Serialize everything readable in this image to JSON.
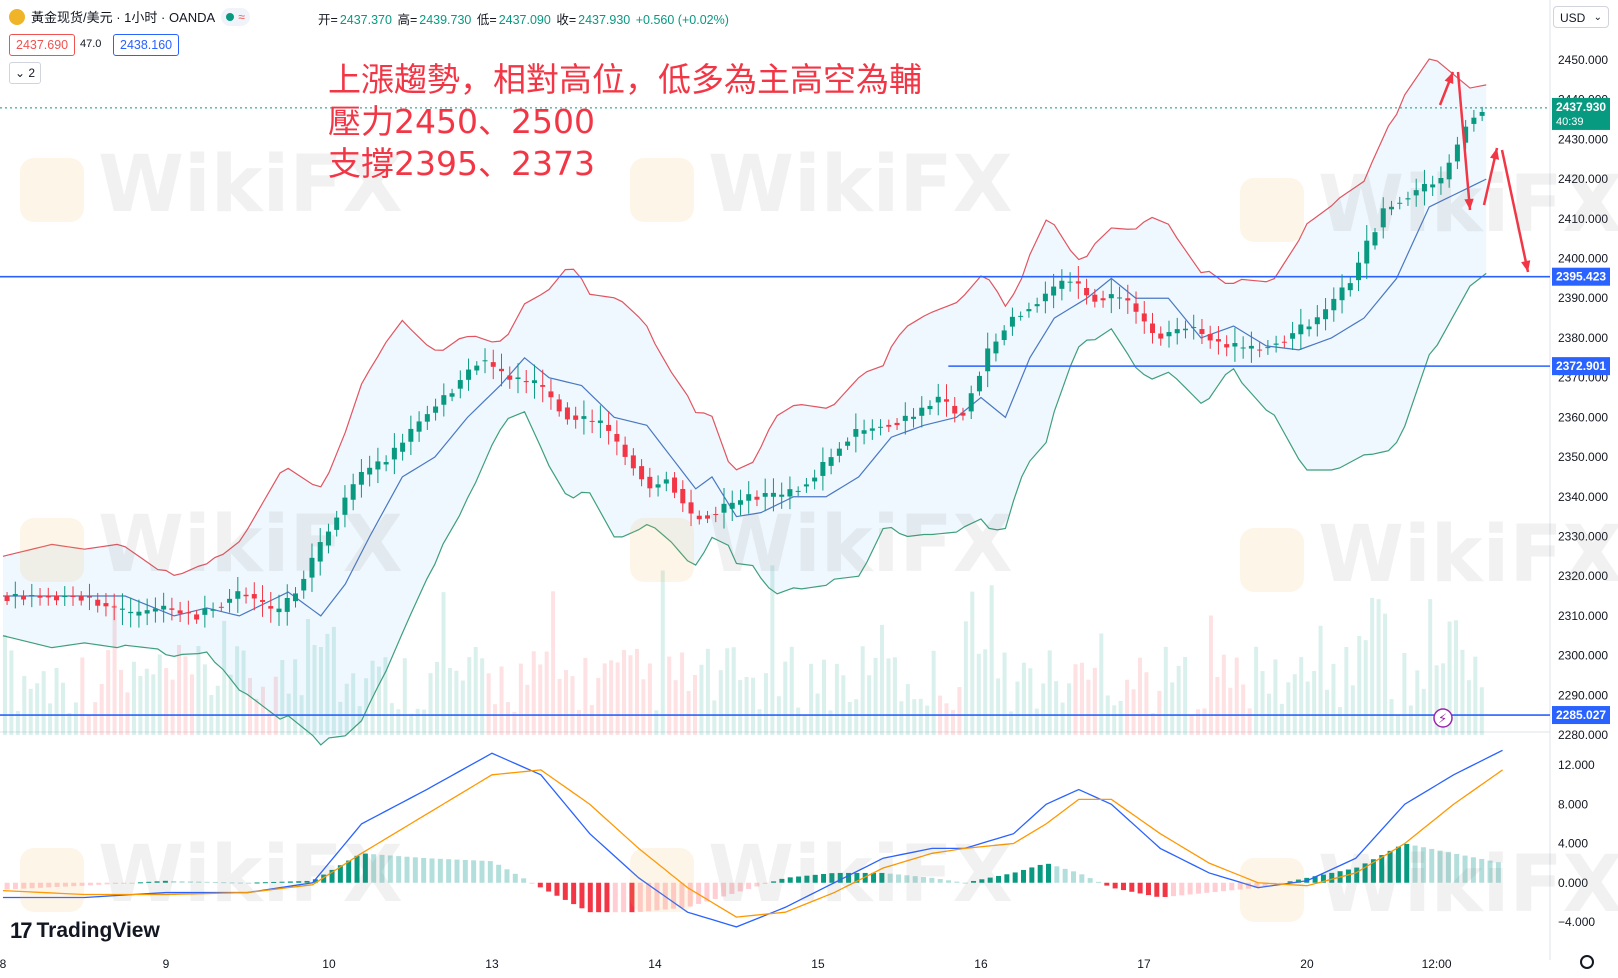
{
  "header": {
    "symbol_title": "黃金现货/美元 · 1小时 · OANDA",
    "ohlc": [
      {
        "label": "开=",
        "value": "2437.370"
      },
      {
        "label": "高=",
        "value": "2439.730"
      },
      {
        "label": "低=",
        "value": "2437.090"
      },
      {
        "label": "收=",
        "value": "2437.930"
      }
    ],
    "change": "+0.560 (+0.02%)",
    "sell_price": "2437.690",
    "spread": "47.0",
    "buy_price": "2438.160",
    "collapse_label": "2",
    "currency": "USD"
  },
  "annotation": {
    "line1": "上漲趨勢，相對高位，低多為主高空為輔",
    "line2": "壓力2450、2500",
    "line3": "支撐2395、2373"
  },
  "brand": {
    "logo": "17",
    "name": "TradingView"
  },
  "watermark": "WikiFX",
  "colors": {
    "up": "#089981",
    "down": "#f23645",
    "hline": "#2962ff",
    "band_upper": "#e05561",
    "band_lower": "#3f9f7a",
    "band_mid": "#4a78c2",
    "annotation": "#f23645",
    "macd": "#2962ff",
    "signal": "#ff9800"
  },
  "chart_data": {
    "type": "candlestick",
    "symbol": "XAU/USD",
    "price_axis": {
      "min": 2280,
      "max": 2450,
      "ticks": [
        2450,
        2440,
        2430,
        2420,
        2410,
        2400,
        2390,
        2380,
        2370,
        2360,
        2350,
        2340,
        2330,
        2320,
        2310,
        2300,
        2290,
        2280
      ]
    },
    "price_tick_labels": [
      "2450.000",
      "2440.000",
      "2430.000",
      "2420.000",
      "2410.000",
      "2400.000",
      "2390.000",
      "2380.000",
      "2370.000",
      "2360.000",
      "2350.000",
      "2340.000",
      "2330.000",
      "2320.000",
      "2310.000",
      "2300.000",
      "2290.000",
      "2280.000"
    ],
    "x_labels": [
      "8",
      "9",
      "10",
      "13",
      "14",
      "15",
      "16",
      "17",
      "20",
      "12:00"
    ],
    "current_price": {
      "value": 2437.93,
      "label": "2437.930",
      "countdown": "40:39"
    },
    "horizontal_lines": [
      {
        "value": 2395.423,
        "label": "2395.423",
        "from_day": 0
      },
      {
        "value": 2372.901,
        "label": "2372.901",
        "from_day": 5.8
      },
      {
        "value": 2285.027,
        "label": "2285.027",
        "from_day": 0
      }
    ],
    "price_path": [
      [
        0,
        2315
      ],
      [
        0.5,
        2315
      ],
      [
        0.8,
        2310
      ],
      [
        1.0,
        2312
      ],
      [
        1.2,
        2310
      ],
      [
        1.5,
        2316
      ],
      [
        1.7,
        2310
      ],
      [
        1.85,
        2318
      ],
      [
        2.0,
        2330
      ],
      [
        2.2,
        2345
      ],
      [
        2.4,
        2350
      ],
      [
        2.6,
        2360
      ],
      [
        2.8,
        2368
      ],
      [
        2.95,
        2375
      ],
      [
        3.1,
        2370
      ],
      [
        3.3,
        2368
      ],
      [
        3.5,
        2360
      ],
      [
        3.7,
        2358
      ],
      [
        3.85,
        2350
      ],
      [
        4.0,
        2342
      ],
      [
        4.1,
        2345
      ],
      [
        4.25,
        2335
      ],
      [
        4.4,
        2336
      ],
      [
        4.6,
        2340
      ],
      [
        4.8,
        2340
      ],
      [
        5.0,
        2345
      ],
      [
        5.2,
        2355
      ],
      [
        5.4,
        2358
      ],
      [
        5.6,
        2360
      ],
      [
        5.75,
        2365
      ],
      [
        5.9,
        2360
      ],
      [
        6.05,
        2375
      ],
      [
        6.2,
        2385
      ],
      [
        6.4,
        2390
      ],
      [
        6.55,
        2395
      ],
      [
        6.7,
        2390
      ],
      [
        6.9,
        2390
      ],
      [
        7.1,
        2380
      ],
      [
        7.3,
        2383
      ],
      [
        7.5,
        2378
      ],
      [
        7.7,
        2377
      ],
      [
        7.9,
        2380
      ],
      [
        8.1,
        2385
      ],
      [
        8.3,
        2395
      ],
      [
        8.5,
        2413
      ],
      [
        8.7,
        2417
      ],
      [
        8.85,
        2420
      ],
      [
        9.0,
        2434
      ],
      [
        9.1,
        2437.9
      ]
    ],
    "volume_range": [
      0,
      1
    ],
    "macd_axis": {
      "min": -4,
      "max": 12,
      "ticks": [
        12,
        8,
        4,
        0,
        -4
      ],
      "tick_labels": [
        "12.000",
        "8.000",
        "4.000",
        "0.000",
        "−4.000"
      ]
    },
    "macd_path": [
      [
        0,
        -1.5
      ],
      [
        0.5,
        -1.5
      ],
      [
        1.0,
        -1.0
      ],
      [
        1.5,
        -1.0
      ],
      [
        1.9,
        0
      ],
      [
        2.2,
        6
      ],
      [
        2.6,
        9.5
      ],
      [
        3.0,
        13.2
      ],
      [
        3.3,
        11
      ],
      [
        3.6,
        5
      ],
      [
        3.9,
        0.5
      ],
      [
        4.2,
        -3
      ],
      [
        4.5,
        -4.5
      ],
      [
        4.8,
        -2.5
      ],
      [
        5.1,
        0
      ],
      [
        5.4,
        2.5
      ],
      [
        5.7,
        3.5
      ],
      [
        5.9,
        3.5
      ],
      [
        6.2,
        5
      ],
      [
        6.4,
        8
      ],
      [
        6.6,
        9.5
      ],
      [
        6.8,
        8
      ],
      [
        7.1,
        3.5
      ],
      [
        7.4,
        1
      ],
      [
        7.7,
        -0.5
      ],
      [
        8.0,
        0.2
      ],
      [
        8.3,
        2.5
      ],
      [
        8.6,
        8
      ],
      [
        8.9,
        11
      ],
      [
        9.2,
        13.5
      ]
    ],
    "signal_path": [
      [
        0,
        -0.8
      ],
      [
        0.5,
        -1.2
      ],
      [
        1.0,
        -1.2
      ],
      [
        1.5,
        -1.0
      ],
      [
        1.9,
        -0.2
      ],
      [
        2.2,
        3
      ],
      [
        2.6,
        7
      ],
      [
        3.0,
        11
      ],
      [
        3.3,
        11.5
      ],
      [
        3.6,
        8
      ],
      [
        3.9,
        3.5
      ],
      [
        4.2,
        -0.5
      ],
      [
        4.5,
        -3.5
      ],
      [
        4.8,
        -3
      ],
      [
        5.1,
        -1.0
      ],
      [
        5.4,
        1.5
      ],
      [
        5.7,
        3
      ],
      [
        5.9,
        3.5
      ],
      [
        6.2,
        4
      ],
      [
        6.4,
        6
      ],
      [
        6.6,
        8.5
      ],
      [
        6.8,
        8.5
      ],
      [
        7.1,
        5
      ],
      [
        7.4,
        2
      ],
      [
        7.7,
        0
      ],
      [
        8.0,
        -0.3
      ],
      [
        8.3,
        1
      ],
      [
        8.6,
        4
      ],
      [
        8.9,
        8
      ],
      [
        9.2,
        11.5
      ]
    ]
  }
}
